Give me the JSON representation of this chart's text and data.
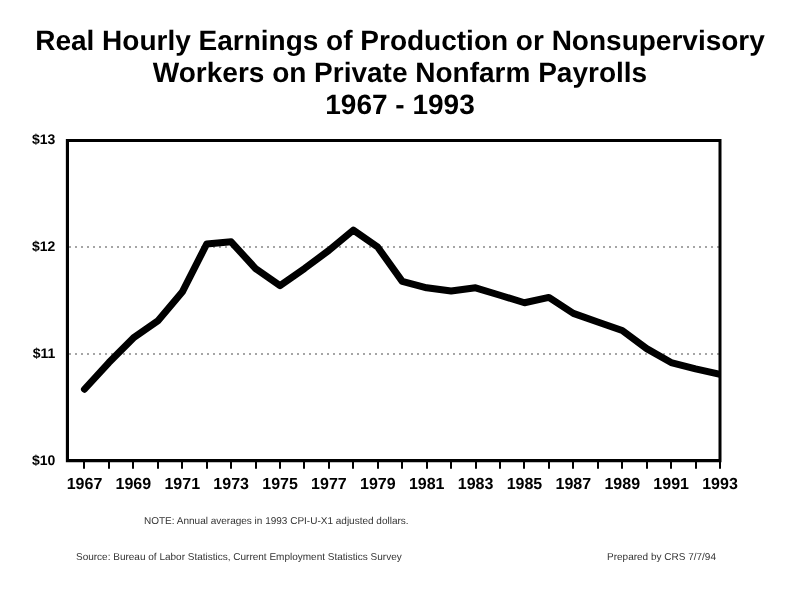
{
  "chart_data": {
    "type": "line",
    "title": [
      "Real Hourly Earnings of Production or Nonsupervisory",
      "Workers on Private Nonfarm Payrolls",
      "1967 - 1993"
    ],
    "x": [
      1967,
      1968,
      1969,
      1970,
      1971,
      1972,
      1973,
      1974,
      1975,
      1976,
      1977,
      1978,
      1979,
      1980,
      1981,
      1982,
      1983,
      1984,
      1985,
      1986,
      1987,
      1988,
      1989,
      1990,
      1991,
      1992,
      1993
    ],
    "series": [
      {
        "color": "#000000",
        "values": [
          10.67,
          10.92,
          11.15,
          11.31,
          11.58,
          12.03,
          12.05,
          11.8,
          11.64,
          11.8,
          11.97,
          12.16,
          12.0,
          11.68,
          11.62,
          11.59,
          11.62,
          11.55,
          11.48,
          11.53,
          11.38,
          11.3,
          11.22,
          11.05,
          10.92,
          10.86,
          10.81
        ]
      }
    ],
    "xlim": [
      1966.3,
      1993
    ],
    "xticks": [
      1967,
      {
        "value": 1968,
        "label": null
      },
      1969,
      {
        "value": 1970,
        "label": null
      },
      1971,
      {
        "value": 1972,
        "label": null
      },
      1973,
      {
        "value": 1974,
        "label": null
      },
      1975,
      {
        "value": 1976,
        "label": null
      },
      1977,
      {
        "value": 1978,
        "label": null
      },
      1979,
      {
        "value": 1980,
        "label": null
      },
      1981,
      {
        "value": 1982,
        "label": null
      },
      1983,
      {
        "value": 1984,
        "label": null
      },
      1985,
      {
        "value": 1986,
        "label": null
      },
      1987,
      {
        "value": 1988,
        "label": null
      },
      1989,
      {
        "value": 1990,
        "label": null
      },
      1991,
      {
        "value": 1992,
        "label": null
      },
      1993
    ],
    "ylim": [
      10,
      13
    ],
    "yticks": [
      {
        "value": 10,
        "label": "$10"
      },
      {
        "value": 11,
        "label": "$11"
      },
      {
        "value": 12,
        "label": "$12"
      },
      {
        "value": 13,
        "label": "$13"
      }
    ],
    "grid": "y",
    "legend": false,
    "marker": "none",
    "line_style": "solid",
    "annotations": [
      "NOTE:  Annual averages in 1993 CPI-U-X1 adjusted dollars.",
      "Source:  Bureau of Labor Statistics, Current Employment Statistics Survey",
      "Prepared by CRS 7/7/94"
    ]
  }
}
